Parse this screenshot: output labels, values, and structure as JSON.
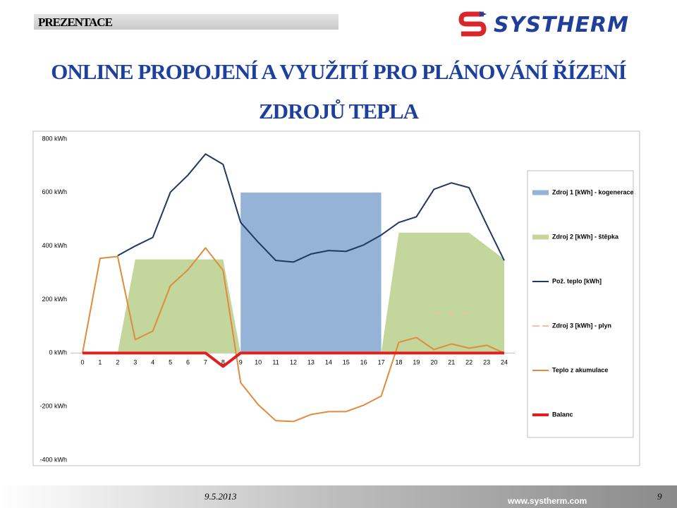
{
  "header": {
    "label": "PREZENTACE",
    "logo": "SYSTHERM"
  },
  "title_lines": [
    "ONLINE PROPOJENÍ A VYUŽITÍ PRO PLÁNOVÁNÍ ŘÍZENÍ",
    "ZDROJŮ TEPLA"
  ],
  "footer": {
    "date": "9.5.2013",
    "page": "9",
    "url": "www.systherm.com"
  },
  "chart_data": {
    "type": "combo",
    "categories": [
      "0",
      "1",
      "2",
      "3",
      "4",
      "5",
      "6",
      "7",
      "8",
      "9",
      "10",
      "11",
      "12",
      "13",
      "14",
      "15",
      "16",
      "17",
      "18",
      "19",
      "20",
      "21",
      "22",
      "23",
      "24"
    ],
    "ylim": [
      -400,
      800
    ],
    "yticks": [
      {
        "value": -400,
        "label": "-400 kWh"
      },
      {
        "value": -200,
        "label": "-200 kWh"
      },
      {
        "value": 0,
        "label": "0 kWh"
      },
      {
        "value": 200,
        "label": "200 kWh"
      },
      {
        "value": 400,
        "label": "400 kWh"
      },
      {
        "value": 600,
        "label": "600 kWh"
      },
      {
        "value": 800,
        "label": "800 kWh"
      }
    ],
    "grid": false,
    "series": [
      {
        "name": "Zdroj 1 [kWh] - kogenerace",
        "type": "area",
        "color": "#95b3d7",
        "values": [
          null,
          null,
          null,
          null,
          null,
          null,
          null,
          null,
          null,
          600,
          600,
          600,
          600,
          600,
          600,
          600,
          600,
          600,
          null,
          null,
          null,
          null,
          null,
          null,
          null
        ]
      },
      {
        "name": "Zdroj 2 [kWh] - štěpka",
        "type": "area",
        "color": "#c3d69b",
        "values": [
          0,
          0,
          0,
          350,
          350,
          350,
          350,
          350,
          350,
          0,
          0,
          0,
          0,
          0,
          0,
          0,
          0,
          0,
          450,
          450,
          450,
          450,
          450,
          400,
          350
        ]
      },
      {
        "name": "Pož. teplo [kWh]",
        "type": "line",
        "color": "#1f3864",
        "values": [
          null,
          null,
          364,
          400,
          432,
          601,
          665,
          744,
          705,
          488,
          414,
          346,
          340,
          370,
          383,
          380,
          404,
          441,
          488,
          509,
          612,
          636,
          618,
          480,
          346
        ]
      },
      {
        "name": "Zdroj 3 [kWh] - plyn",
        "type": "line",
        "dashed": true,
        "color": "#f9be9a",
        "values": [
          null,
          null,
          null,
          null,
          null,
          null,
          null,
          null,
          null,
          null,
          null,
          null,
          null,
          null,
          null,
          null,
          null,
          null,
          null,
          null,
          150,
          150,
          150,
          null,
          null
        ]
      },
      {
        "name": "Teplo z akumulace",
        "type": "line",
        "color": "#e08b3e",
        "values": [
          0,
          354,
          361,
          50,
          82,
          251,
          311,
          393,
          309,
          -111,
          -193,
          -253,
          -256,
          -230,
          -219,
          -219,
          -195,
          -161,
          40,
          58,
          13,
          34,
          18,
          29,
          0
        ]
      },
      {
        "name": "Balanc",
        "type": "line",
        "width": 4,
        "color": "#e02020",
        "values": [
          0,
          0,
          0,
          0,
          0,
          0,
          0,
          0,
          -50,
          0,
          0,
          0,
          0,
          0,
          0,
          0,
          0,
          0,
          0,
          0,
          0,
          0,
          0,
          0,
          0
        ]
      }
    ]
  }
}
